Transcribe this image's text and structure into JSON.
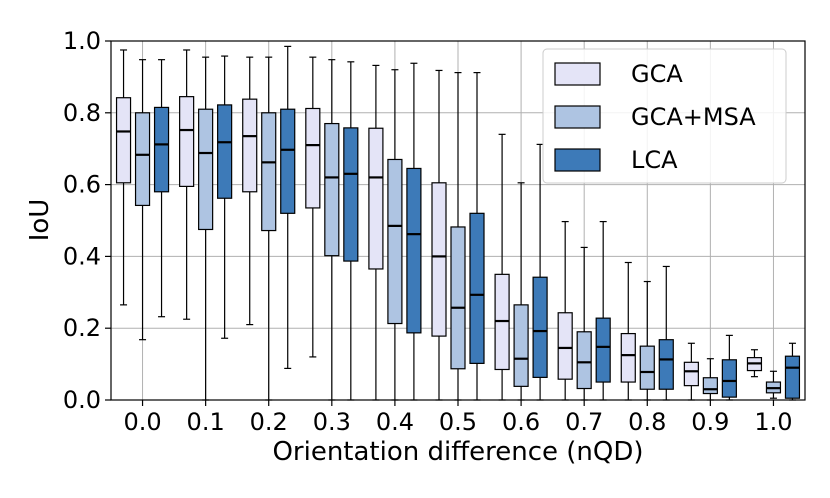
{
  "chart_data": {
    "type": "boxplot",
    "title": "",
    "xlabel": "Orientation difference (nQD)",
    "ylabel": "IoU",
    "ylim": [
      0.0,
      1.0
    ],
    "yticks": [
      "0.0",
      "0.2",
      "0.4",
      "0.6",
      "0.8",
      "1.0"
    ],
    "categories": [
      "0.0",
      "0.1",
      "0.2",
      "0.3",
      "0.4",
      "0.5",
      "0.6",
      "0.7",
      "0.8",
      "0.9",
      "1.0"
    ],
    "grid": true,
    "legend_position": "top-right",
    "series": [
      {
        "name": "GCA",
        "color": "#e4e4f7",
        "boxes": [
          {
            "whislo": 0.265,
            "q1": 0.605,
            "med": 0.748,
            "q3": 0.842,
            "whishi": 0.975
          },
          {
            "whislo": 0.225,
            "q1": 0.595,
            "med": 0.752,
            "q3": 0.845,
            "whishi": 0.975
          },
          {
            "whislo": 0.21,
            "q1": 0.58,
            "med": 0.735,
            "q3": 0.838,
            "whishi": 0.955
          },
          {
            "whislo": 0.12,
            "q1": 0.535,
            "med": 0.71,
            "q3": 0.812,
            "whishi": 0.955
          },
          {
            "whislo": 0.0,
            "q1": 0.365,
            "med": 0.62,
            "q3": 0.757,
            "whishi": 0.932
          },
          {
            "whislo": 0.0,
            "q1": 0.178,
            "med": 0.4,
            "q3": 0.605,
            "whishi": 0.918
          },
          {
            "whislo": 0.0,
            "q1": 0.085,
            "med": 0.22,
            "q3": 0.35,
            "whishi": 0.74
          },
          {
            "whislo": 0.0,
            "q1": 0.058,
            "med": 0.145,
            "q3": 0.243,
            "whishi": 0.497
          },
          {
            "whislo": 0.0,
            "q1": 0.05,
            "med": 0.125,
            "q3": 0.185,
            "whishi": 0.383
          },
          {
            "whislo": 0.0,
            "q1": 0.04,
            "med": 0.08,
            "q3": 0.105,
            "whishi": 0.158
          },
          {
            "whislo": 0.065,
            "q1": 0.082,
            "med": 0.102,
            "q3": 0.118,
            "whishi": 0.14
          }
        ]
      },
      {
        "name": "GCA+MSA",
        "color": "#aec4e2",
        "boxes": [
          {
            "whislo": 0.168,
            "q1": 0.542,
            "med": 0.683,
            "q3": 0.8,
            "whishi": 0.948
          },
          {
            "whislo": 0.0,
            "q1": 0.475,
            "med": 0.688,
            "q3": 0.81,
            "whishi": 0.955
          },
          {
            "whislo": 0.0,
            "q1": 0.472,
            "med": 0.662,
            "q3": 0.8,
            "whishi": 0.955
          },
          {
            "whislo": 0.0,
            "q1": 0.402,
            "med": 0.62,
            "q3": 0.77,
            "whishi": 0.948
          },
          {
            "whislo": 0.0,
            "q1": 0.213,
            "med": 0.485,
            "q3": 0.67,
            "whishi": 0.92
          },
          {
            "whislo": 0.0,
            "q1": 0.087,
            "med": 0.257,
            "q3": 0.482,
            "whishi": 0.912
          },
          {
            "whislo": 0.0,
            "q1": 0.038,
            "med": 0.115,
            "q3": 0.265,
            "whishi": 0.605
          },
          {
            "whislo": 0.0,
            "q1": 0.032,
            "med": 0.105,
            "q3": 0.19,
            "whishi": 0.425
          },
          {
            "whislo": 0.0,
            "q1": 0.03,
            "med": 0.078,
            "q3": 0.15,
            "whishi": 0.33
          },
          {
            "whislo": 0.0,
            "q1": 0.018,
            "med": 0.03,
            "q3": 0.062,
            "whishi": 0.115
          },
          {
            "whislo": 0.005,
            "q1": 0.02,
            "med": 0.033,
            "q3": 0.05,
            "whishi": 0.08
          }
        ]
      },
      {
        "name": "LCA",
        "color": "#3d7ab8",
        "boxes": [
          {
            "whislo": 0.232,
            "q1": 0.58,
            "med": 0.712,
            "q3": 0.815,
            "whishi": 0.948
          },
          {
            "whislo": 0.172,
            "q1": 0.562,
            "med": 0.718,
            "q3": 0.822,
            "whishi": 0.958
          },
          {
            "whislo": 0.088,
            "q1": 0.52,
            "med": 0.697,
            "q3": 0.81,
            "whishi": 0.985
          },
          {
            "whislo": 0.0,
            "q1": 0.387,
            "med": 0.63,
            "q3": 0.758,
            "whishi": 0.942
          },
          {
            "whislo": 0.0,
            "q1": 0.187,
            "med": 0.462,
            "q3": 0.645,
            "whishi": 0.938
          },
          {
            "whislo": 0.0,
            "q1": 0.102,
            "med": 0.293,
            "q3": 0.52,
            "whishi": 0.912
          },
          {
            "whislo": 0.0,
            "q1": 0.063,
            "med": 0.192,
            "q3": 0.342,
            "whishi": 0.712
          },
          {
            "whislo": 0.0,
            "q1": 0.05,
            "med": 0.148,
            "q3": 0.228,
            "whishi": 0.497
          },
          {
            "whislo": 0.0,
            "q1": 0.03,
            "med": 0.113,
            "q3": 0.168,
            "whishi": 0.372
          },
          {
            "whislo": 0.0,
            "q1": 0.008,
            "med": 0.053,
            "q3": 0.112,
            "whishi": 0.18
          },
          {
            "whislo": 0.0,
            "q1": 0.005,
            "med": 0.09,
            "q3": 0.122,
            "whishi": 0.158
          }
        ]
      }
    ]
  }
}
